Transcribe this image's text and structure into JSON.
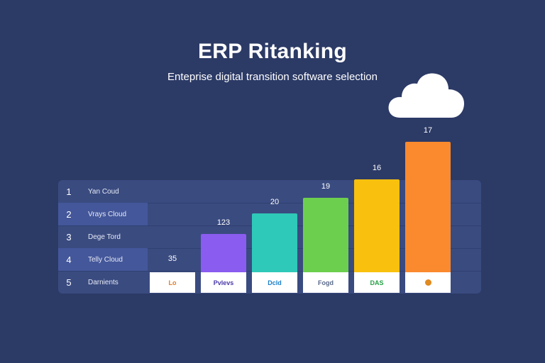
{
  "header": {
    "title": "ERP Ritanking",
    "subtitle": "Enteprise digital transition software selection"
  },
  "icons": {
    "cloud": "cloud-icon"
  },
  "chart_data": {
    "type": "bar",
    "title": "ERP Ritanking",
    "subtitle": "Enteprise digital transition software selection",
    "categories": [
      "Lo",
      "Pvlevs",
      "Dcld",
      "Fogd",
      "DAS",
      ""
    ],
    "values": [
      35,
      123,
      20,
      19,
      16,
      17
    ],
    "value_labels": [
      "35",
      "123",
      "20",
      "19",
      "16",
      "17"
    ],
    "display_heights": [
      0.03,
      0.47,
      0.73,
      0.92,
      1.15,
      1.61
    ],
    "colors": [
      "#2c3a66",
      "#8a5cf0",
      "#2ec9b8",
      "#6dcf4e",
      "#f9c10e",
      "#fb8a2e"
    ],
    "logo_colors": [
      "#e07b28",
      "#4a3aa8",
      "#1c7fc7",
      "#5a6a8a",
      "#28a047",
      "#e08a20"
    ],
    "ranking": [
      {
        "rank": "1",
        "name": "Yan Coud"
      },
      {
        "rank": "2",
        "name": "Vrays Cloud"
      },
      {
        "rank": "3",
        "name": "Dege Tord"
      },
      {
        "rank": "4",
        "name": "Telly Cloud"
      },
      {
        "rank": "5",
        "name": "Darnients"
      }
    ],
    "xlabel": "",
    "ylabel": ""
  }
}
